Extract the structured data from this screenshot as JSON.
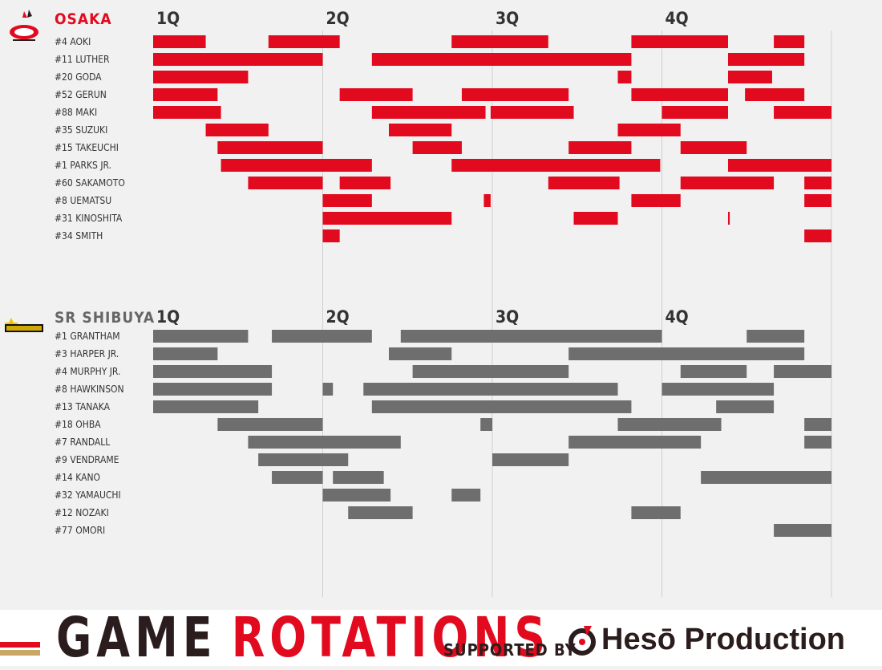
{
  "chart_data": [
    {
      "type": "bar",
      "title": "OSAKA",
      "team_color": "#e20a1e",
      "x_unit": "minutes",
      "xlim": [
        0,
        40
      ],
      "quarters": [
        "1Q",
        "2Q",
        "3Q",
        "4Q"
      ],
      "players": [
        {
          "label": "#4  AOKI",
          "stints": [
            [
              0,
              3.1
            ],
            [
              6.8,
              11
            ],
            [
              17.6,
              23.3
            ],
            [
              28.2,
              33.9
            ],
            [
              36.6,
              38.4
            ]
          ]
        },
        {
          "label": "#11  LUTHER",
          "stints": [
            [
              0,
              10
            ],
            [
              12.9,
              28.2
            ],
            [
              33.9,
              38.4
            ]
          ]
        },
        {
          "label": "#20 GODA",
          "stints": [
            [
              0,
              5.6
            ],
            [
              27.4,
              28.2
            ],
            [
              33.9,
              36.5
            ]
          ]
        },
        {
          "label": "#52  GERUN",
          "stints": [
            [
              0,
              3.8
            ],
            [
              11,
              15.3
            ],
            [
              18.2,
              24.5
            ],
            [
              28.2,
              33.9
            ],
            [
              34.9,
              38.4
            ]
          ]
        },
        {
          "label": "#88  MAKI",
          "stints": [
            [
              0,
              4
            ],
            [
              12.9,
              19.6
            ],
            [
              19.9,
              24.8
            ],
            [
              30,
              33.9
            ],
            [
              36.6,
              40
            ]
          ]
        },
        {
          "label": "#35 SUZUKI",
          "stints": [
            [
              3.1,
              6.8
            ],
            [
              13.9,
              17.6
            ],
            [
              27.4,
              31.1
            ]
          ]
        },
        {
          "label": "#15  TAKEUCHI",
          "stints": [
            [
              3.8,
              10
            ],
            [
              15.3,
              18.2
            ],
            [
              24.5,
              28.2
            ],
            [
              31.1,
              35
            ]
          ]
        },
        {
          "label": "#1   PARKS JR.",
          "stints": [
            [
              4,
              12.9
            ],
            [
              17.6,
              29.9
            ],
            [
              33.9,
              40
            ]
          ]
        },
        {
          "label": "#60 SAKAMOTO",
          "stints": [
            [
              5.6,
              10
            ],
            [
              11,
              14
            ],
            [
              23.3,
              27.5
            ],
            [
              31.1,
              36.6
            ],
            [
              38.4,
              40
            ]
          ]
        },
        {
          "label": "#8   UEMATSU",
          "stints": [
            [
              10,
              12.9
            ],
            [
              19.5,
              19.9
            ],
            [
              28.2,
              31.1
            ],
            [
              38.4,
              40
            ]
          ]
        },
        {
          "label": "#31  KINOSHITA",
          "stints": [
            [
              10,
              17.6
            ],
            [
              24.8,
              27.4
            ],
            [
              33.9,
              34
            ]
          ]
        },
        {
          "label": "#34 SMITH",
          "stints": [
            [
              10,
              11
            ],
            [
              38.4,
              40
            ]
          ]
        }
      ]
    },
    {
      "type": "bar",
      "title": "SR SHIBUYA",
      "team_color": "#6e6e6e",
      "x_unit": "minutes",
      "xlim": [
        0,
        40
      ],
      "quarters": [
        "1Q",
        "2Q",
        "3Q",
        "4Q"
      ],
      "players": [
        {
          "label": "#1   GRANTHAM",
          "stints": [
            [
              0,
              5.6
            ],
            [
              7,
              12.9
            ],
            [
              14.6,
              30
            ],
            [
              35,
              38.4
            ]
          ]
        },
        {
          "label": "#3   HARPER JR.",
          "stints": [
            [
              0,
              3.8
            ],
            [
              13.9,
              17.6
            ],
            [
              24.5,
              38.4
            ]
          ]
        },
        {
          "label": "#4   MURPHY JR.",
          "stints": [
            [
              0,
              7
            ],
            [
              15.3,
              24.5
            ],
            [
              31.1,
              35
            ],
            [
              36.6,
              40
            ]
          ]
        },
        {
          "label": "#8   HAWKINSON",
          "stints": [
            [
              0,
              7
            ],
            [
              10,
              10.6
            ],
            [
              12.4,
              27.4
            ],
            [
              30,
              36.6
            ]
          ]
        },
        {
          "label": "#13  TANAKA",
          "stints": [
            [
              0,
              6.2
            ],
            [
              12.9,
              28.2
            ],
            [
              33.2,
              36.6
            ]
          ]
        },
        {
          "label": "#18  OHBA",
          "stints": [
            [
              3.8,
              10
            ],
            [
              19.3,
              20
            ],
            [
              27.4,
              33.5
            ],
            [
              38.4,
              40
            ]
          ]
        },
        {
          "label": "#7   RANDALL",
          "stints": [
            [
              5.6,
              14.6
            ],
            [
              24.5,
              32.3
            ],
            [
              38.4,
              40
            ]
          ]
        },
        {
          "label": "#9   VENDRAME",
          "stints": [
            [
              6.2,
              11.5
            ],
            [
              20,
              24.5
            ]
          ]
        },
        {
          "label": "#14  KANO",
          "stints": [
            [
              7,
              10
            ],
            [
              10.6,
              13.6
            ],
            [
              32.3,
              40
            ]
          ]
        },
        {
          "label": "#32  YAMAUCHI",
          "stints": [
            [
              10,
              14
            ],
            [
              17.6,
              19.3
            ]
          ]
        },
        {
          "label": "#12  NOZAKI",
          "stints": [
            [
              11.5,
              15.3
            ],
            [
              28.2,
              31.1
            ]
          ]
        },
        {
          "label": "#77  OMORI",
          "stints": [
            [
              36.6,
              40
            ]
          ]
        }
      ]
    }
  ],
  "footer": {
    "title_word1": "GAME",
    "title_word2": "ROTATIONS",
    "supported_by": "SUPPORTED BY",
    "sponsor": "Hesō Production",
    "accent": "#e20a1e",
    "dark": "#2b1d1d",
    "gold": "#c9a866"
  }
}
